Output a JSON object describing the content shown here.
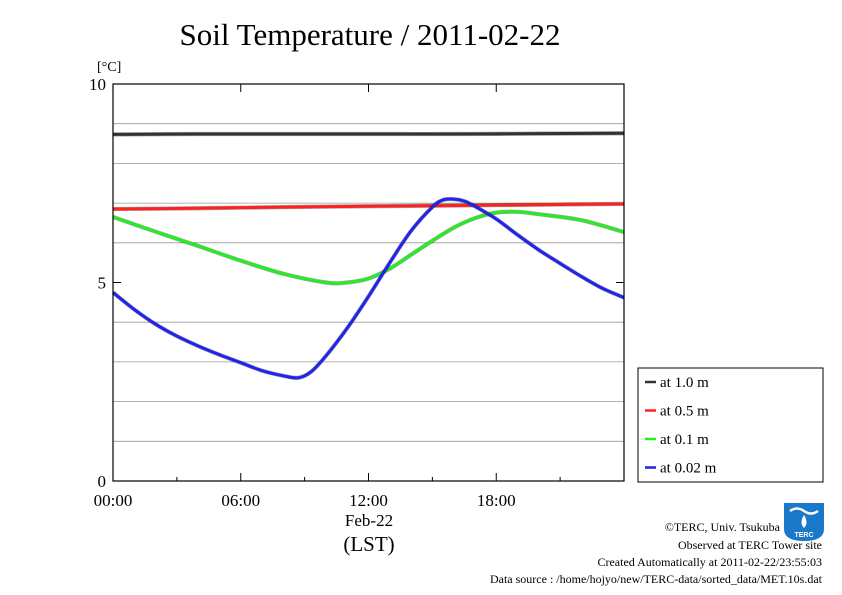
{
  "chart_data": {
    "type": "line",
    "title": "Soil Temperature / 2011-02-22",
    "ylabel_unit": "[°C]",
    "xlabel_date": "Feb-22",
    "xlabel_tz": "(LST)",
    "xlim": [
      0,
      24
    ],
    "ylim": [
      0,
      10
    ],
    "x_ticks": [
      {
        "value": 0,
        "label": "00:00"
      },
      {
        "value": 6,
        "label": "06:00"
      },
      {
        "value": 12,
        "label": "12:00"
      },
      {
        "value": 18,
        "label": "18:00"
      }
    ],
    "y_ticks": [
      {
        "value": 0,
        "label": "0"
      },
      {
        "value": 5,
        "label": "5"
      },
      {
        "value": 10,
        "label": "10"
      }
    ],
    "grid_y": [
      1,
      2,
      3,
      4,
      6,
      7,
      8,
      9
    ],
    "grid": true,
    "legend_position": "right-bottom",
    "series": [
      {
        "name": "at 1.0 m",
        "color": "#333333",
        "x": [
          0,
          4,
          8,
          12,
          16,
          20,
          24
        ],
        "y": [
          8.73,
          8.74,
          8.74,
          8.74,
          8.74,
          8.75,
          8.76
        ]
      },
      {
        "name": "at 0.5 m",
        "color": "#ff2020",
        "x": [
          0,
          4,
          8,
          12,
          16,
          20,
          24
        ],
        "y": [
          6.85,
          6.87,
          6.9,
          6.92,
          6.94,
          6.96,
          6.98
        ]
      },
      {
        "name": "at 0.1 m",
        "color": "#22ee22",
        "x": [
          0,
          2,
          4,
          6,
          8,
          10,
          11,
          12,
          13,
          14,
          15,
          16,
          17,
          18,
          19,
          20,
          22,
          24
        ],
        "y": [
          6.65,
          6.28,
          5.92,
          5.55,
          5.22,
          5.0,
          5.0,
          5.1,
          5.35,
          5.7,
          6.05,
          6.38,
          6.62,
          6.76,
          6.78,
          6.72,
          6.57,
          6.27
        ]
      },
      {
        "name": "at 0.02 m",
        "color": "#2222ee",
        "x": [
          0,
          1,
          2,
          3,
          4,
          5,
          6,
          7,
          8,
          8.7,
          9.3,
          10,
          11,
          12,
          13,
          14,
          15,
          15.5,
          16,
          16.5,
          17,
          18,
          19,
          20,
          21,
          22,
          23,
          24
        ],
        "y": [
          4.75,
          4.32,
          3.95,
          3.65,
          3.4,
          3.18,
          2.98,
          2.78,
          2.65,
          2.6,
          2.75,
          3.15,
          3.85,
          4.65,
          5.5,
          6.3,
          6.9,
          7.08,
          7.1,
          7.05,
          6.92,
          6.6,
          6.2,
          5.82,
          5.48,
          5.15,
          4.85,
          4.62
        ]
      }
    ]
  },
  "credits": {
    "copyright": "©TERC, Univ. Tsukuba",
    "observed": "Observed at TERC Tower site",
    "created": "Created Automatically at 2011-02-22/23:55:03",
    "source": "Data source : /home/hojyo/new/TERC-data/sorted_data/MET.10s.dat"
  },
  "logo": {
    "text": "TERC",
    "color": "#1a78c8"
  }
}
